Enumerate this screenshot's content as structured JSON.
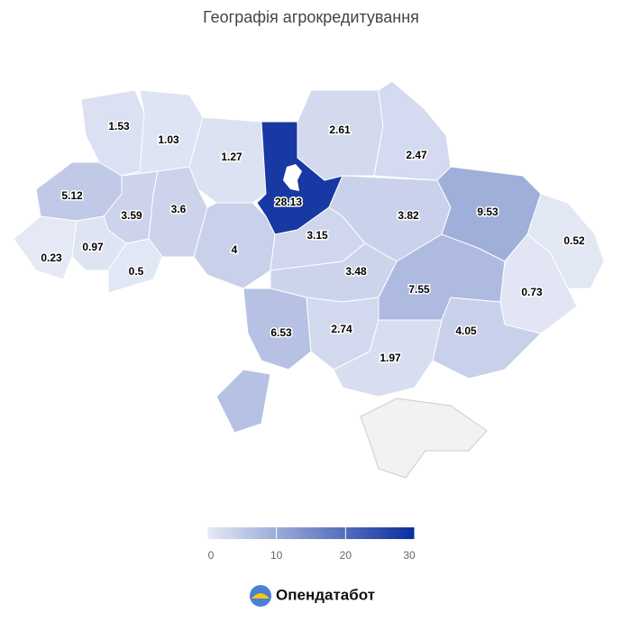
{
  "chart_data": {
    "type": "map",
    "title": "Географія агрокредитування",
    "values": [
      1.53,
      1.03,
      1.27,
      28.13,
      2.61,
      2.47,
      5.12,
      3.59,
      3.6,
      4,
      0.23,
      0.97,
      0.5,
      3.15,
      3.82,
      9.53,
      0.52,
      3.48,
      7.55,
      0.73,
      6.53,
      2.74,
      4.05,
      1.97
    ],
    "colorscale": {
      "range": [
        0,
        30
      ],
      "ticks": [
        0,
        10,
        20,
        30
      ],
      "colors": [
        "#e6eaf6",
        "#0a2d9e"
      ]
    }
  },
  "brand": "Опендатабот"
}
